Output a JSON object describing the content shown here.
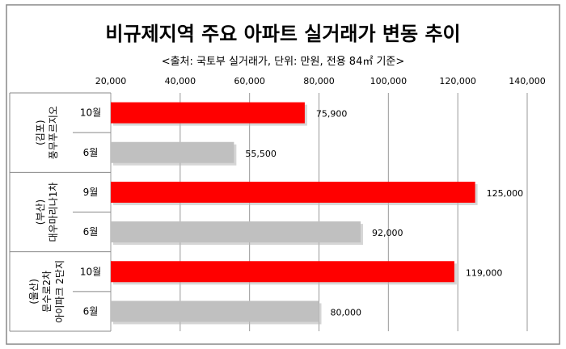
{
  "chart_data": {
    "type": "bar",
    "orientation": "horizontal",
    "title": "비규제지역 주요 아파트 실거래가 변동 추이",
    "subtitle": "<출처: 국토부 실거래가, 단위: 만원, 전용 84㎡ 기준>",
    "xlim": [
      20000,
      140000
    ],
    "ticks": [
      20000,
      40000,
      60000,
      80000,
      100000,
      120000,
      140000
    ],
    "tick_labels": [
      "20,000",
      "40,000",
      "60,000",
      "80,000",
      "100,000",
      "120,000",
      "140,000"
    ],
    "grid": true,
    "groups": [
      {
        "region": "(김포)",
        "name": "풍무푸르지오",
        "name_lines": [
          "풍무푸르지오"
        ],
        "bars": [
          {
            "label": "10월",
            "value": 75900,
            "value_label": "75,900",
            "color": "#ff0000"
          },
          {
            "label": "6월",
            "value": 55500,
            "value_label": "55,500",
            "color": "#c0c0c0"
          }
        ]
      },
      {
        "region": "(부산)",
        "name": "대우마리나1차",
        "name_lines": [
          "대우마리나1차"
        ],
        "bars": [
          {
            "label": "9월",
            "value": 125000,
            "value_label": "125,000",
            "color": "#ff0000"
          },
          {
            "label": "6월",
            "value": 92000,
            "value_label": "92,000",
            "color": "#c0c0c0"
          }
        ]
      },
      {
        "region": "(울산)",
        "name": "문수로2차 아이파크 2단지",
        "name_lines": [
          "문수로2차",
          "아이파크 2단지"
        ],
        "bars": [
          {
            "label": "10월",
            "value": 119000,
            "value_label": "119,000",
            "color": "#ff0000"
          },
          {
            "label": "6월",
            "value": 80000,
            "value_label": "80,000",
            "color": "#c0c0c0"
          }
        ]
      }
    ]
  }
}
